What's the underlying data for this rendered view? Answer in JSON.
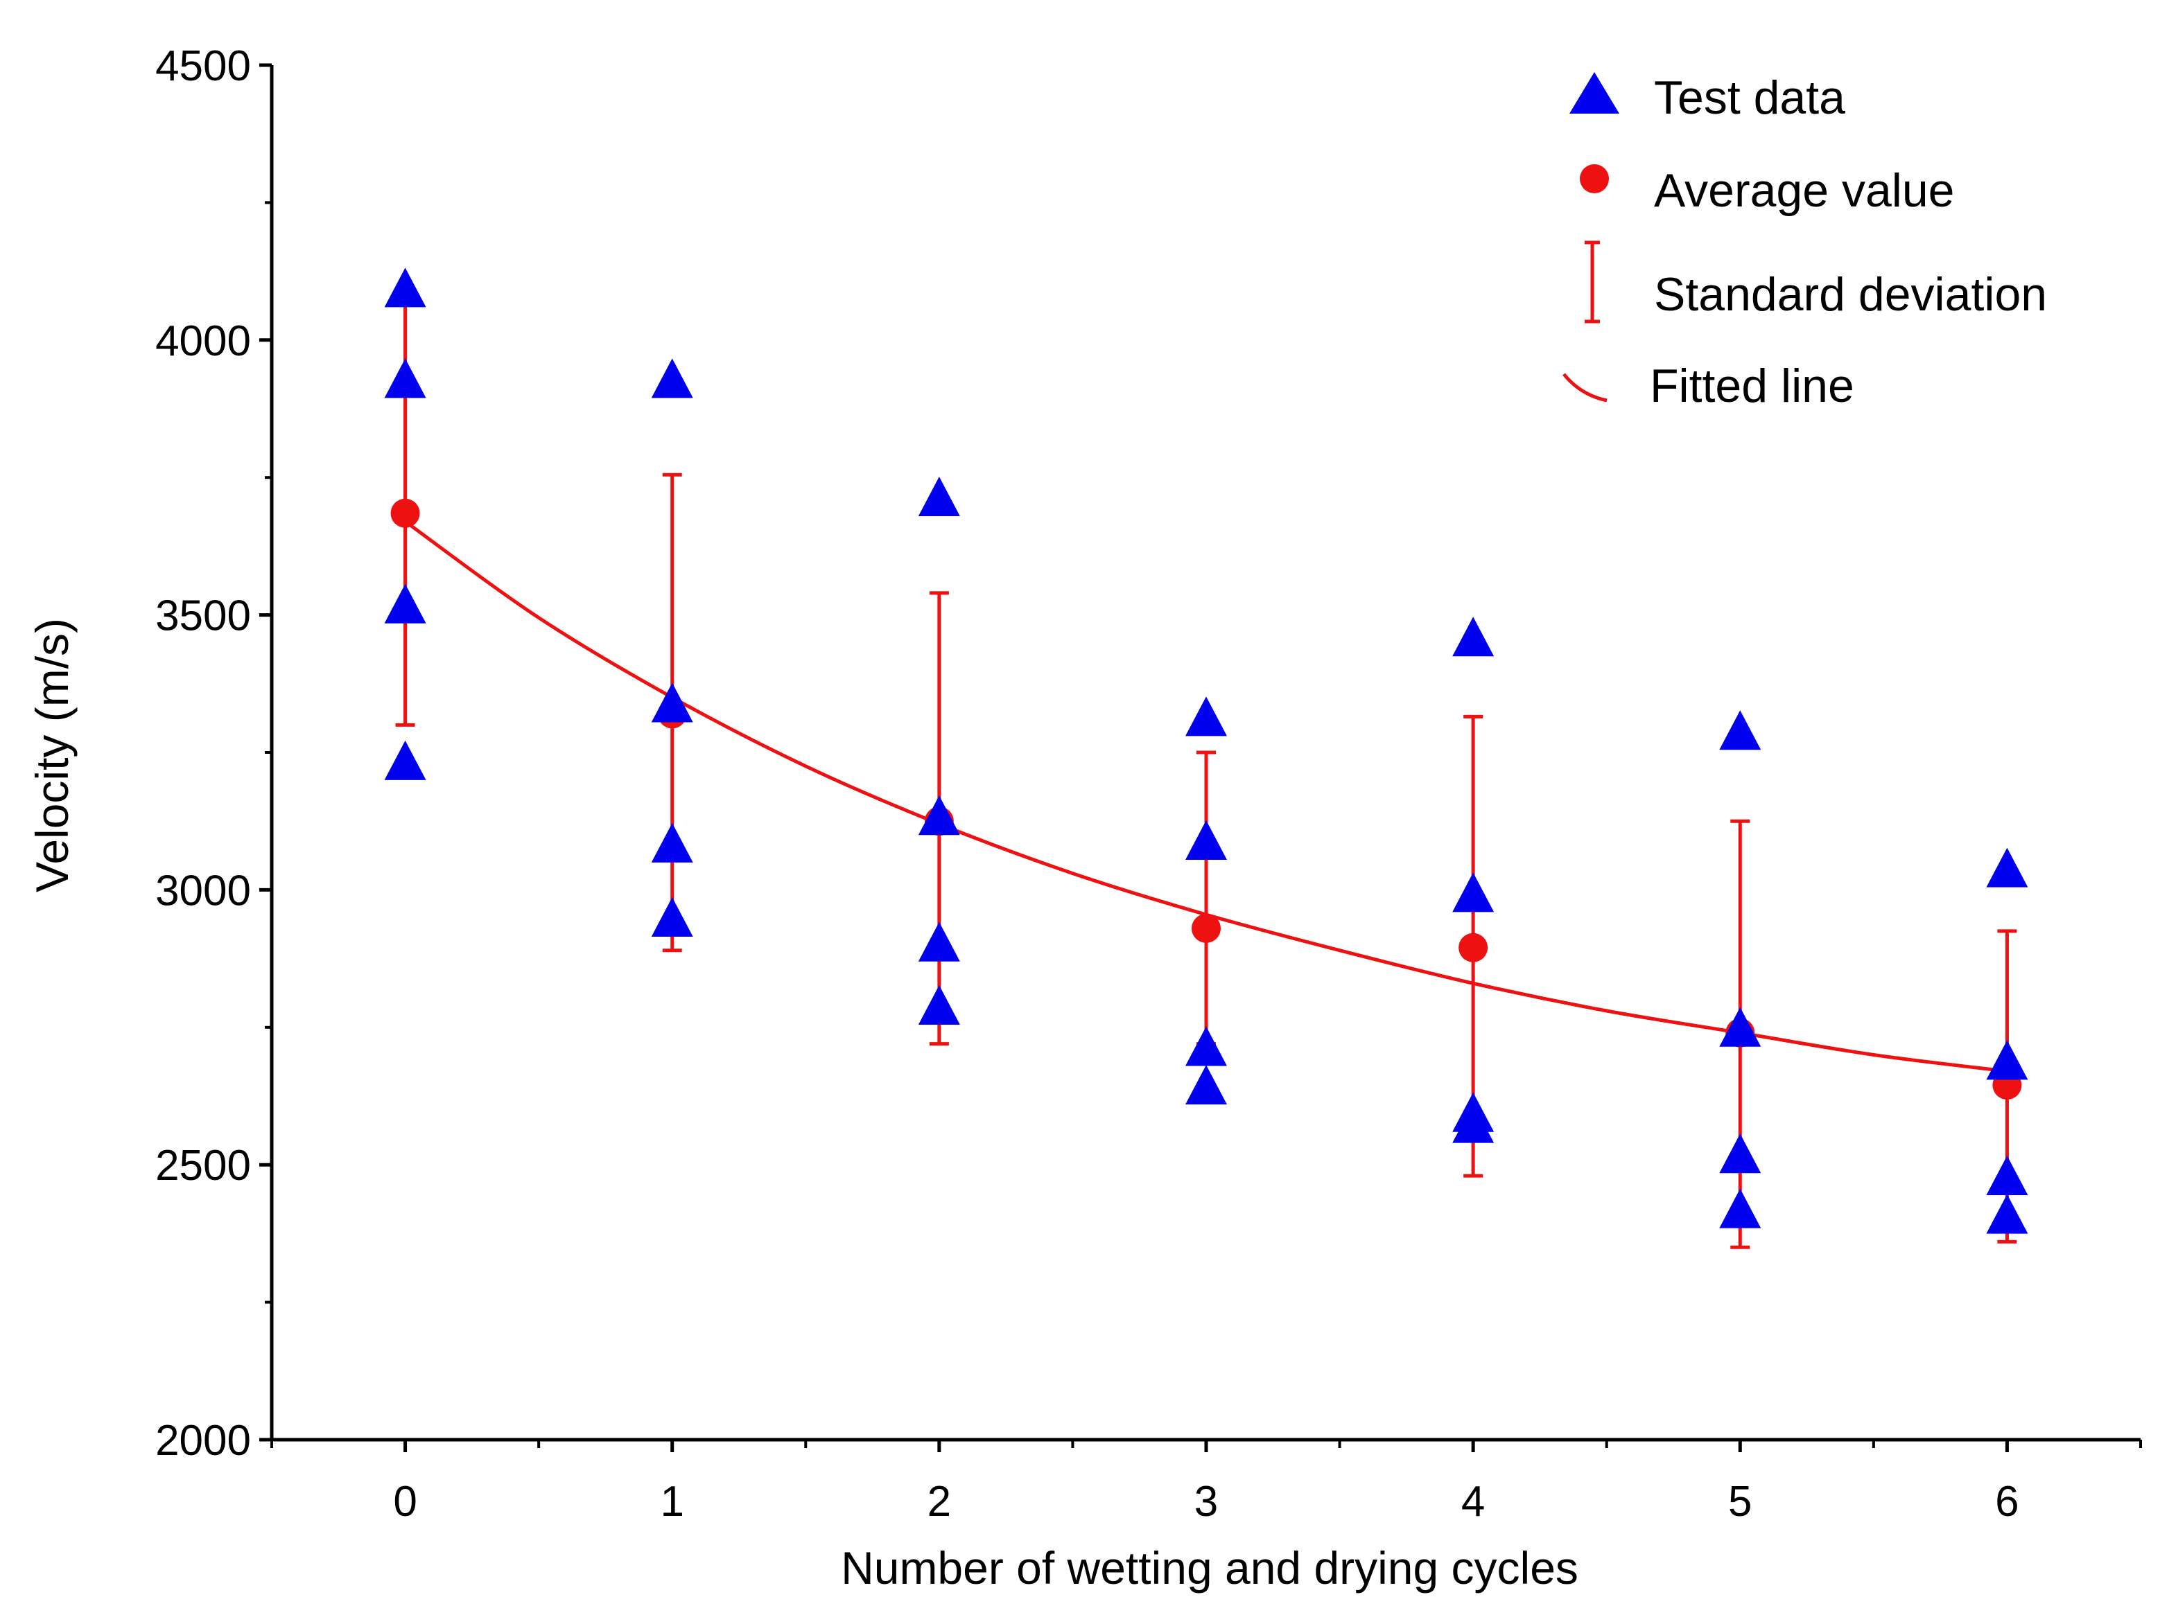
{
  "chart_data": {
    "type": "scatter",
    "xlabel": "Number of wetting and drying cycles",
    "ylabel": "Velocity (m/s)",
    "xlim": [
      -0.5,
      6.5
    ],
    "ylim": [
      2000,
      4500
    ],
    "xticks": [
      0,
      1,
      2,
      3,
      4,
      5,
      6
    ],
    "yticks": [
      2000,
      2500,
      3000,
      3500,
      4000,
      4500
    ],
    "xtick_labels": [
      "0",
      "1",
      "2",
      "3",
      "4",
      "5",
      "6"
    ],
    "ytick_labels": [
      "2000",
      "2500",
      "3000",
      "3500",
      "4000",
      "4500"
    ],
    "grid": false,
    "legend_position": "top-right",
    "colors": {
      "test_data": "#0000ee",
      "average": "#ee1111",
      "axis": "#000000"
    },
    "series": [
      {
        "name": "Test data",
        "marker": "triangle",
        "points": [
          [
            0,
            4090
          ],
          [
            0,
            3925
          ],
          [
            0,
            3515
          ],
          [
            0,
            3230
          ],
          [
            1,
            3925
          ],
          [
            1,
            3335
          ],
          [
            1,
            3080
          ],
          [
            1,
            2945
          ],
          [
            2,
            3710
          ],
          [
            2,
            3130
          ],
          [
            2,
            2900
          ],
          [
            2,
            2785
          ],
          [
            3,
            3310
          ],
          [
            3,
            3085
          ],
          [
            3,
            2710
          ],
          [
            3,
            2640
          ],
          [
            4,
            3455
          ],
          [
            4,
            2990
          ],
          [
            4,
            2590
          ],
          [
            4,
            2570
          ],
          [
            5,
            3285
          ],
          [
            5,
            2745
          ],
          [
            5,
            2515
          ],
          [
            5,
            2415
          ],
          [
            6,
            3035
          ],
          [
            6,
            2685
          ],
          [
            6,
            2475
          ],
          [
            6,
            2405
          ]
        ]
      },
      {
        "name": "Average value",
        "marker": "circle",
        "x": [
          0,
          1,
          2,
          3,
          4,
          5,
          6
        ],
        "y": [
          3685,
          3320,
          3125,
          2930,
          2895,
          2740,
          2645
        ]
      },
      {
        "name": "Standard deviation",
        "marker": "errorbar",
        "x": [
          0,
          1,
          2,
          3,
          4,
          5,
          6
        ],
        "low": [
          3300,
          2890,
          2720,
          2720,
          2480,
          2350,
          2360
        ],
        "high": [
          4065,
          3755,
          3540,
          3250,
          3315,
          3125,
          2925
        ]
      },
      {
        "name": "Fitted line",
        "marker": "line",
        "x": [
          0,
          0.5,
          1,
          1.5,
          2,
          2.5,
          3,
          3.5,
          4,
          4.5,
          5,
          5.5,
          6
        ],
        "y": [
          3670,
          3495,
          3350,
          3225,
          3120,
          3030,
          2955,
          2890,
          2830,
          2780,
          2740,
          2700,
          2670
        ]
      }
    ],
    "legend": [
      "Test data",
      "Average value",
      "Standard deviation",
      "Fitted line"
    ]
  }
}
